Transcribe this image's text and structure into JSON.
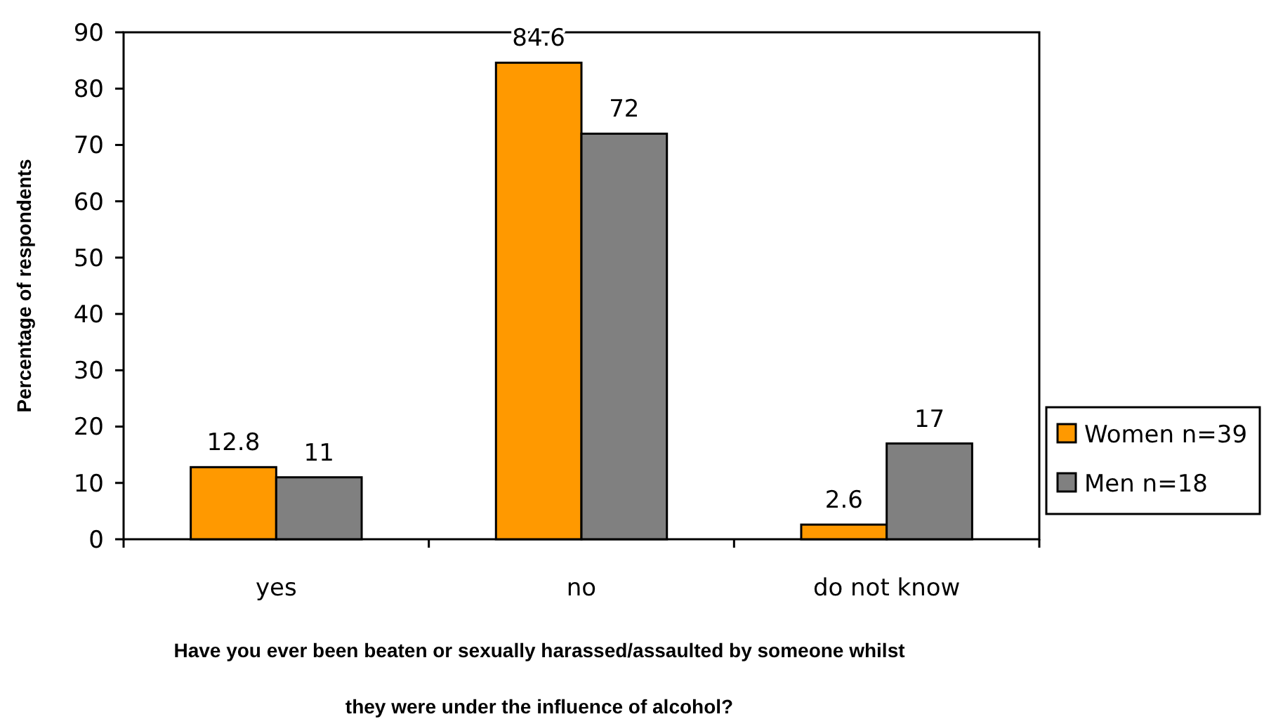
{
  "chart_data": {
    "type": "bar",
    "categories": [
      "yes",
      "no",
      "do not know"
    ],
    "series": [
      {
        "name": "Women n=39",
        "color": "#ff9900",
        "values": [
          12.8,
          84.6,
          2.6
        ]
      },
      {
        "name": "Men n=18",
        "color": "#808080",
        "values": [
          11,
          72,
          17
        ]
      }
    ],
    "ylabel": "Percentage of respondents",
    "xlabel": "Have you ever been beaten or sexually harassed/assaulted by someone whilst they were under the influence of alcohol?",
    "ylim": [
      0,
      90
    ],
    "yticks": [
      0,
      10,
      20,
      30,
      40,
      50,
      60,
      70,
      80,
      90
    ],
    "data_labels": true,
    "legend": "right",
    "grid": false
  }
}
